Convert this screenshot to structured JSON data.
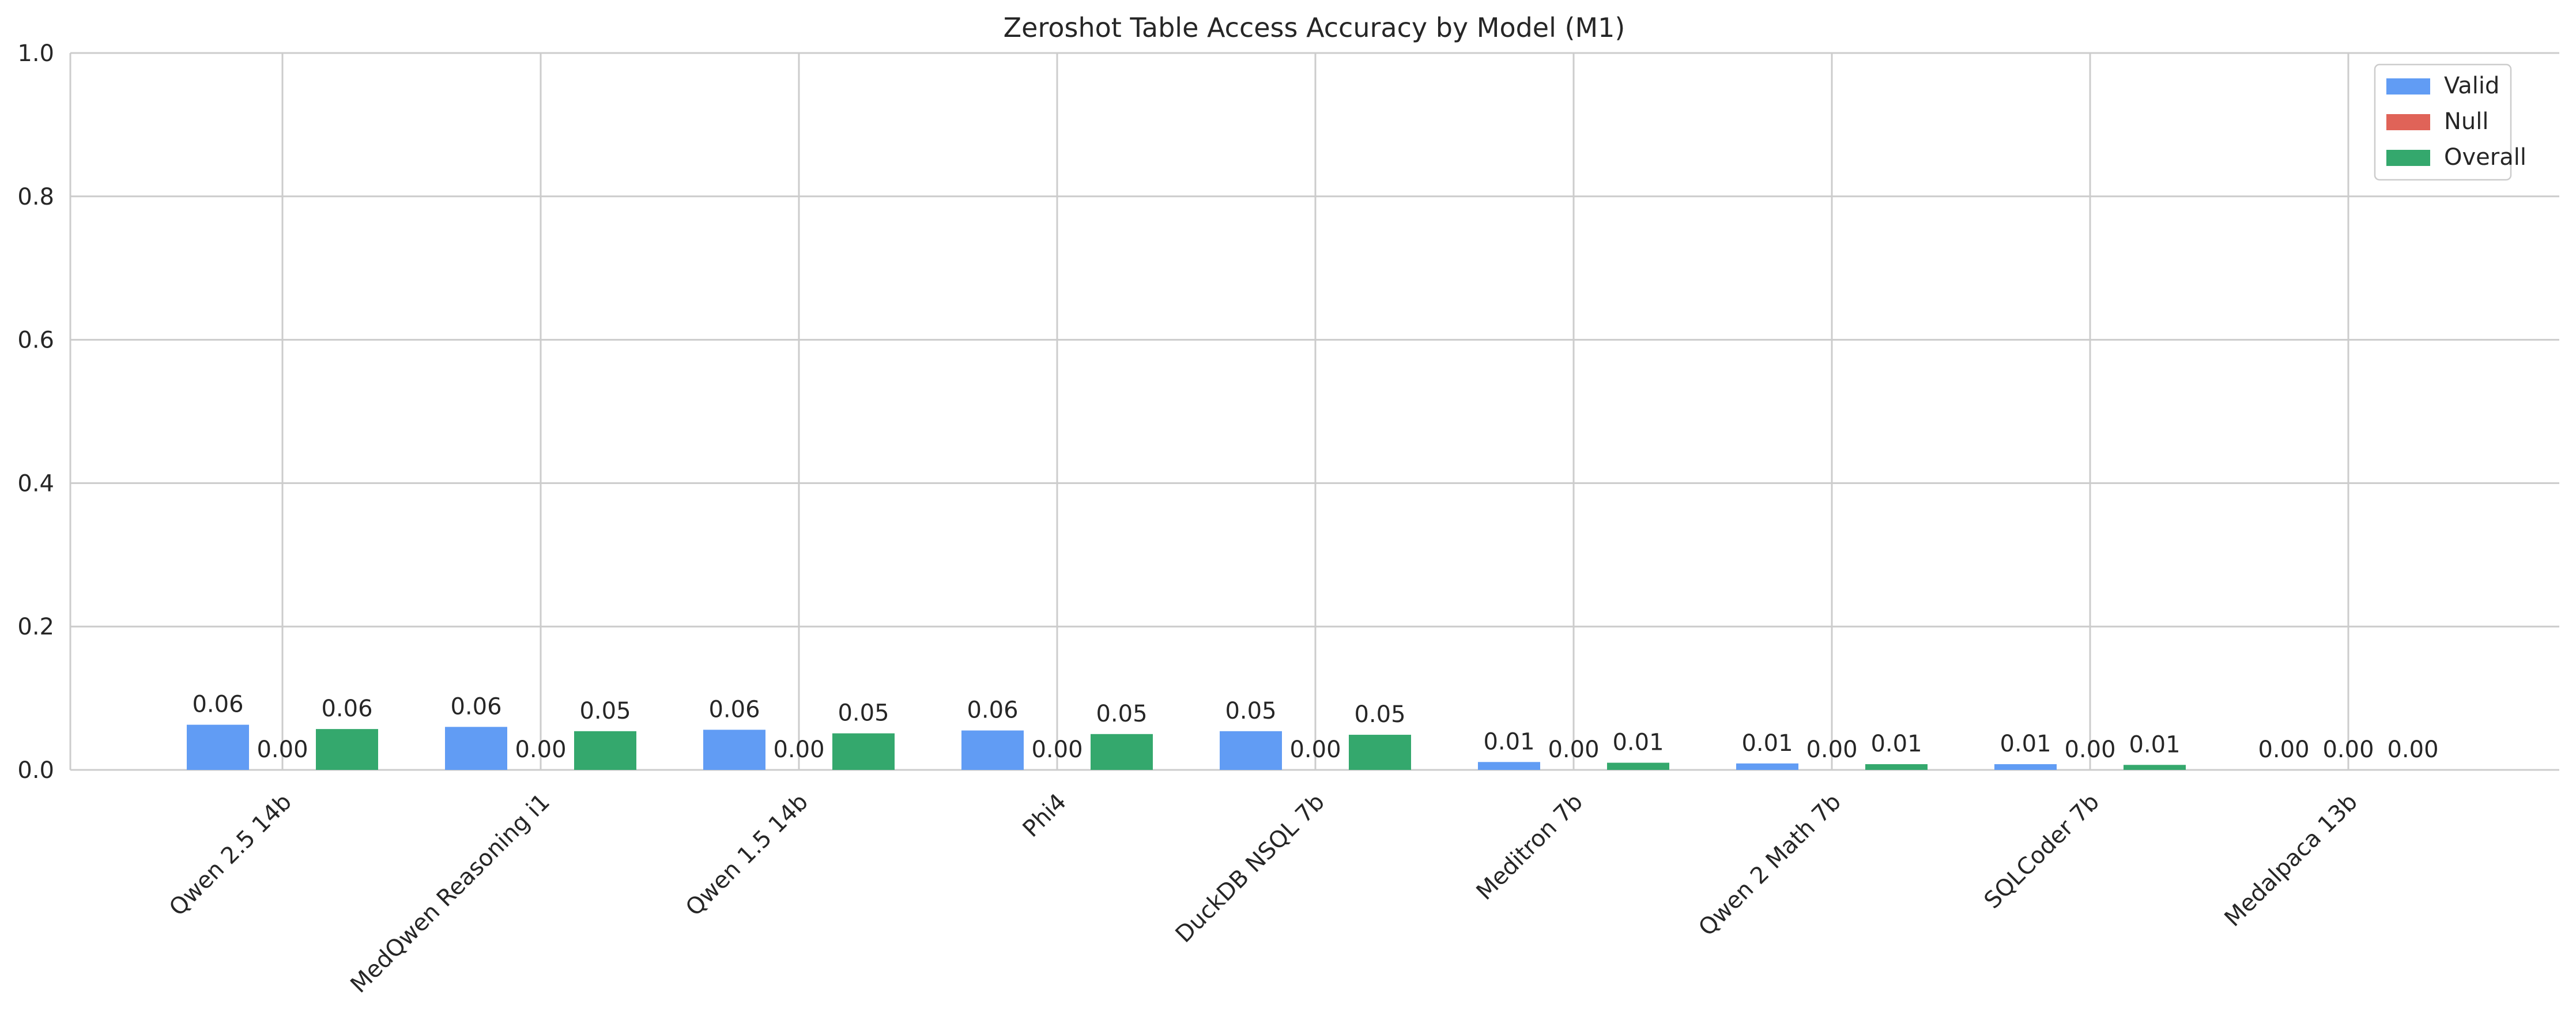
{
  "chart_data": {
    "type": "bar",
    "title": "Zeroshot Table Access Accuracy by Model (M1)",
    "xlabel": "",
    "ylabel": "",
    "ylim": [
      0,
      1.0
    ],
    "yticks": [
      0.0,
      0.2,
      0.4,
      0.6,
      0.8,
      1.0
    ],
    "categories": [
      "Qwen 2.5 14b",
      "MedQwen Reasoning i1",
      "Qwen 1.5 14b",
      "Phi4",
      "DuckDB NSQL 7b",
      "Meditron 7b",
      "Qwen 2 Math 7b",
      "SQLCoder 7b",
      "Medalpaca 13b"
    ],
    "series": [
      {
        "name": "Valid",
        "color": "#619cf4",
        "values": [
          0.063,
          0.06,
          0.056,
          0.055,
          0.054,
          0.011,
          0.009,
          0.008,
          0.0
        ],
        "labels": [
          "0.06",
          "0.06",
          "0.06",
          "0.06",
          "0.05",
          "0.01",
          "0.01",
          "0.01",
          "0.00"
        ]
      },
      {
        "name": "Null",
        "color": "#e06358",
        "values": [
          0.0,
          0.0,
          0.0,
          0.0,
          0.0,
          0.0,
          0.0,
          0.0,
          0.0
        ],
        "labels": [
          "0.00",
          "0.00",
          "0.00",
          "0.00",
          "0.00",
          "0.00",
          "0.00",
          "0.00",
          "0.00"
        ]
      },
      {
        "name": "Overall",
        "color": "#34a86d",
        "values": [
          0.057,
          0.054,
          0.051,
          0.05,
          0.049,
          0.01,
          0.008,
          0.007,
          0.0
        ],
        "labels": [
          "0.06",
          "0.05",
          "0.05",
          "0.05",
          "0.05",
          "0.01",
          "0.01",
          "0.01",
          "0.00"
        ]
      }
    ],
    "grid": true,
    "legend_position": "top-right"
  }
}
